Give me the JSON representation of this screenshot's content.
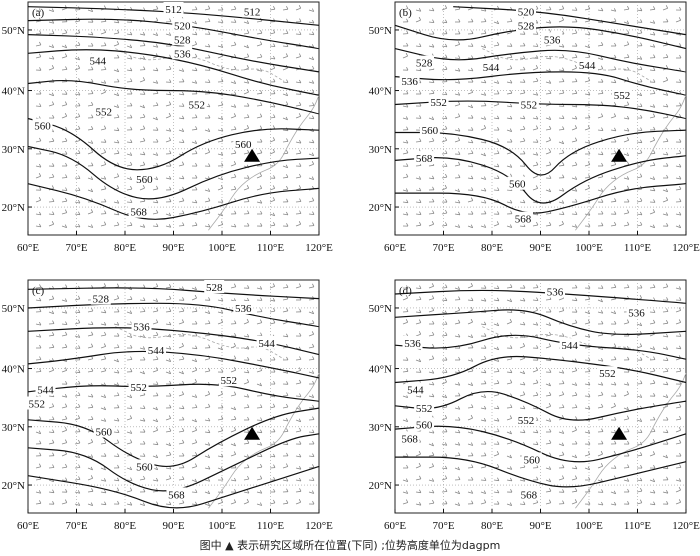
{
  "figure": {
    "caption": "图中 ▲ 表示研究区域所在位置(下同) ;位势高度单位为dagpm",
    "panels": [
      {
        "label": "(a)",
        "contour_labels": [
          "512",
          "512",
          "520",
          "528",
          "536",
          "544",
          "552",
          "552",
          "560",
          "560",
          "560",
          "568"
        ]
      },
      {
        "label": "(b)",
        "contour_labels": [
          "520",
          "528",
          "536",
          "528",
          "544",
          "536",
          "544",
          "552",
          "552",
          "552",
          "560",
          "560",
          "568",
          "568"
        ]
      },
      {
        "label": "(c)",
        "contour_labels": [
          "528",
          "528",
          "536",
          "536",
          "544",
          "544",
          "552",
          "544",
          "552",
          "552",
          "560",
          "560",
          "568"
        ]
      },
      {
        "label": "(d)",
        "contour_labels": [
          "536",
          "536",
          "536",
          "544",
          "544",
          "552",
          "552",
          "552",
          "560",
          "568",
          "560",
          "568"
        ]
      }
    ],
    "x_ticks": [
      "60°E",
      "70°E",
      "80°E",
      "90°E",
      "100°E",
      "110°E",
      "120°E"
    ],
    "y_ticks": [
      "50°N",
      "40°N",
      "30°N",
      "20°N"
    ],
    "marker": "research-area-triangle"
  }
}
